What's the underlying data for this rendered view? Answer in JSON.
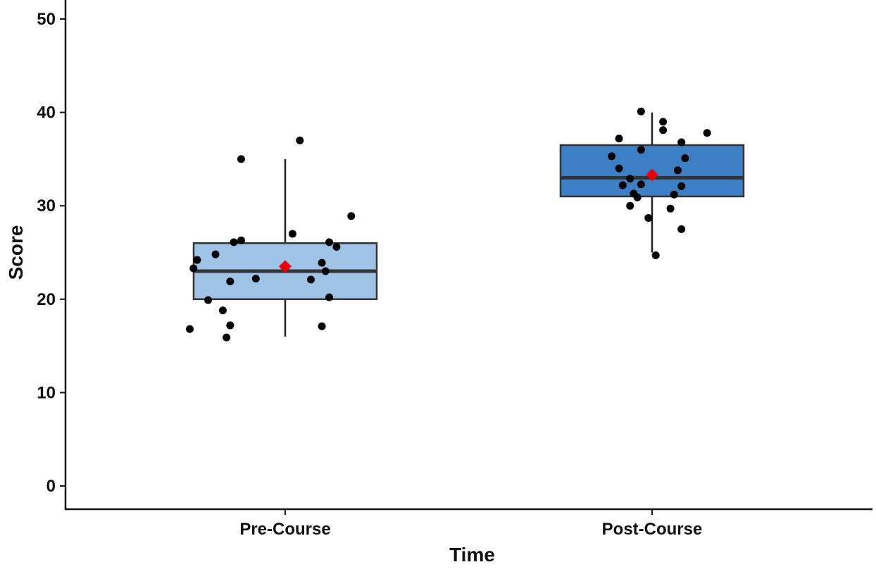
{
  "chart_data": {
    "type": "box",
    "title": "",
    "xlabel": "Time",
    "ylabel": "Score",
    "ylim": [
      -2.5,
      52.5
    ],
    "yticks": [
      0,
      10,
      20,
      30,
      40,
      50
    ],
    "grid": false,
    "legend": "none",
    "categories": [
      "Pre-Course",
      "Post-Course"
    ],
    "boxes": [
      {
        "category": "Pre-Course",
        "fill": "#9fc3e7",
        "q1": 20,
        "median": 23,
        "q3": 26,
        "whisker_low": 16,
        "whisker_high": 35,
        "mean": 23.5,
        "points": [
          {
            "jitter": -0.12,
            "y": 35
          },
          {
            "jitter": 0.04,
            "y": 37
          },
          {
            "jitter": 0.02,
            "y": 27
          },
          {
            "jitter": 0.18,
            "y": 28.9
          },
          {
            "jitter": -0.24,
            "y": 24.2
          },
          {
            "jitter": -0.25,
            "y": 23.3
          },
          {
            "jitter": -0.19,
            "y": 24.8
          },
          {
            "jitter": -0.14,
            "y": 26.1
          },
          {
            "jitter": -0.12,
            "y": 26.3
          },
          {
            "jitter": -0.15,
            "y": 21.9
          },
          {
            "jitter": -0.08,
            "y": 22.2
          },
          {
            "jitter": 0.07,
            "y": 22.1
          },
          {
            "jitter": 0.1,
            "y": 23.9
          },
          {
            "jitter": 0.11,
            "y": 23.0
          },
          {
            "jitter": 0.12,
            "y": 26.1
          },
          {
            "jitter": 0.14,
            "y": 25.6
          },
          {
            "jitter": 0.12,
            "y": 20.2
          },
          {
            "jitter": -0.21,
            "y": 19.9
          },
          {
            "jitter": -0.17,
            "y": 18.8
          },
          {
            "jitter": -0.15,
            "y": 17.2
          },
          {
            "jitter": -0.26,
            "y": 16.8
          },
          {
            "jitter": -0.16,
            "y": 15.9
          },
          {
            "jitter": 0.1,
            "y": 17.1
          }
        ]
      },
      {
        "category": "Post-Course",
        "fill": "#3d7fc4",
        "q1": 31,
        "median": 33,
        "q3": 36.5,
        "whisker_low": 25,
        "whisker_high": 40,
        "mean": 33.3,
        "points": [
          {
            "jitter": -0.03,
            "y": 40.1
          },
          {
            "jitter": 0.03,
            "y": 39.0
          },
          {
            "jitter": 0.03,
            "y": 38.1
          },
          {
            "jitter": 0.15,
            "y": 37.8
          },
          {
            "jitter": -0.09,
            "y": 37.2
          },
          {
            "jitter": 0.08,
            "y": 36.8
          },
          {
            "jitter": -0.03,
            "y": 36.0
          },
          {
            "jitter": -0.11,
            "y": 35.3
          },
          {
            "jitter": 0.09,
            "y": 35.1
          },
          {
            "jitter": -0.09,
            "y": 34.0
          },
          {
            "jitter": 0.07,
            "y": 33.8
          },
          {
            "jitter": -0.06,
            "y": 32.9
          },
          {
            "jitter": -0.08,
            "y": 32.2
          },
          {
            "jitter": -0.03,
            "y": 32.3
          },
          {
            "jitter": 0.08,
            "y": 32.1
          },
          {
            "jitter": -0.05,
            "y": 31.3
          },
          {
            "jitter": -0.04,
            "y": 30.9
          },
          {
            "jitter": 0.06,
            "y": 31.2
          },
          {
            "jitter": -0.06,
            "y": 30.0
          },
          {
            "jitter": 0.05,
            "y": 29.7
          },
          {
            "jitter": -0.01,
            "y": 28.7
          },
          {
            "jitter": 0.08,
            "y": 27.5
          },
          {
            "jitter": 0.01,
            "y": 24.7
          }
        ]
      }
    ],
    "colors": {
      "axis": "#111111",
      "box_stroke": "#333333",
      "median": "#333333",
      "whisker": "#222222",
      "point": "#000000",
      "mean_marker": "#e8000b"
    }
  }
}
